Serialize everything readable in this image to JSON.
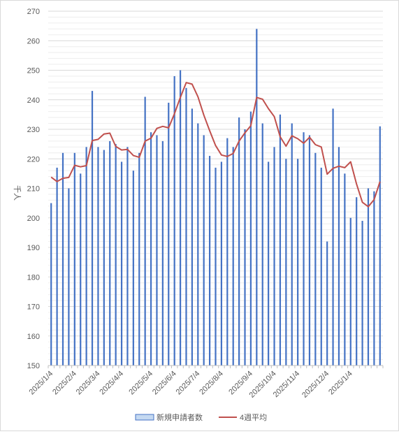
{
  "chart_data": {
    "type": "bar",
    "title": "",
    "xlabel": "",
    "ylabel": "千人",
    "ylim": [
      150,
      270
    ],
    "yticks": [
      150,
      160,
      170,
      180,
      190,
      200,
      210,
      220,
      230,
      240,
      250,
      260,
      270
    ],
    "xtick_labels": [
      "2025/1/4",
      "2025/2/4",
      "2025/3/4",
      "2025/4/4",
      "2025/5/4",
      "2025/6/4",
      "2025/7/4",
      "2025/8/4",
      "2025/9/4",
      "2025/10/4",
      "2025/11/4",
      "2025/12/4",
      "2025/1/4"
    ],
    "xtick_indices": [
      0,
      4,
      8,
      12,
      17,
      21,
      25,
      29,
      34,
      38,
      42,
      47,
      51
    ],
    "grid": true,
    "legend_position": "bottom",
    "colors": {
      "bar": "#4472c4",
      "bar_fill": "#c5d9f1",
      "line": "#c0504d",
      "grid": "#d9d9d9",
      "axis": "#bfbfbf"
    },
    "series": [
      {
        "name": "新規申請者数",
        "type": "bar",
        "values": [
          205,
          217,
          222,
          210,
          222,
          215,
          224,
          243,
          224,
          223,
          226,
          225,
          219,
          224,
          216,
          222,
          241,
          229,
          228,
          226,
          239,
          248,
          250,
          244,
          237,
          232,
          228,
          221,
          217,
          219,
          227,
          224,
          234,
          230,
          236,
          264,
          232,
          219,
          224,
          235,
          220,
          232,
          220,
          229,
          228,
          222,
          217,
          192,
          237,
          224,
          215,
          200,
          207,
          199,
          210,
          209,
          231
        ]
      },
      {
        "name": "4週平均",
        "type": "line",
        "values": [
          213.8,
          212.3,
          213.4,
          213.7,
          217.8,
          217.3,
          217.7,
          226.2,
          226.6,
          228.4,
          228.7,
          224.2,
          223.0,
          223.2,
          221.1,
          220.5,
          226.0,
          227.0,
          230.3,
          231.0,
          230.5,
          235.3,
          240.8,
          245.8,
          245.3,
          241.0,
          234.8,
          229.5,
          224.5,
          221.3,
          220.8,
          221.8,
          226.0,
          228.8,
          231.2,
          240.8,
          240.2,
          237.0,
          234.3,
          227.5,
          224.3,
          227.8,
          226.8,
          225.3,
          227.3,
          224.8,
          224.0,
          214.8,
          216.8,
          217.5,
          217.0,
          219.0,
          211.5,
          205.3,
          203.8,
          206.2,
          212.3
        ]
      }
    ]
  }
}
